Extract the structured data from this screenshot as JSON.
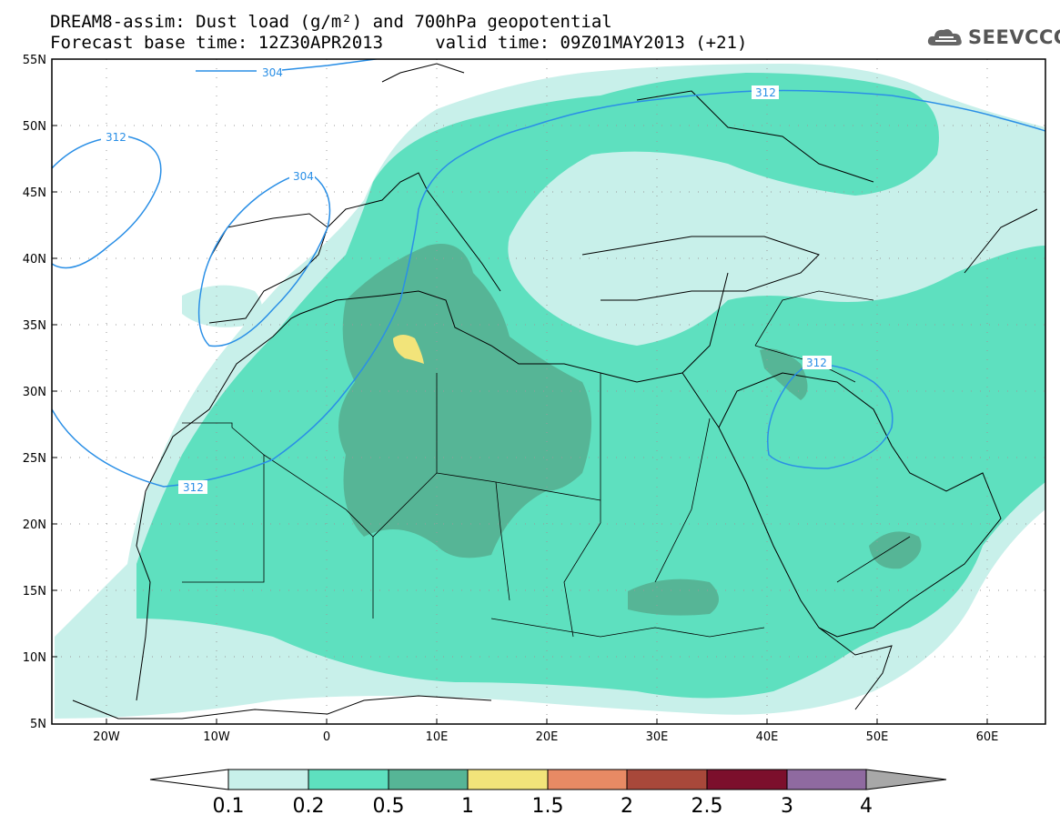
{
  "title_line1": "DREAM8-assim: Dust load (g/m²) and 700hPa geopotential",
  "title_line2": "Forecast base time: 12Z30APR2013     valid time: 09Z01MAY2013 (+21)",
  "logo_text": "SEEVCCC",
  "icons": {
    "logo": "cloud-logo-icon"
  },
  "map": {
    "lon_range": [
      -25,
      65
    ],
    "lat_range": [
      5,
      55
    ],
    "lat_labels": [
      "55N",
      "50N",
      "45N",
      "40N",
      "35N",
      "30N",
      "25N",
      "20N",
      "15N",
      "10N",
      "5N"
    ],
    "lon_labels": [
      "20W",
      "10W",
      "0",
      "10E",
      "20E",
      "30E",
      "40E",
      "50E",
      "60E"
    ],
    "grid": "dotted"
  },
  "contours": {
    "variable": "700hPa geopotential",
    "labels": [
      "304",
      "312",
      "304",
      "312",
      "312",
      "312"
    ]
  },
  "colorbar": {
    "ticks": [
      "0.1",
      "0.2",
      "0.5",
      "1",
      "1.5",
      "2",
      "2.5",
      "3",
      "4"
    ],
    "colors": [
      "#ffffff",
      "#c8f0ea",
      "#5ee0bf",
      "#56b596",
      "#f2e47a",
      "#e88a64",
      "#a8483a",
      "#7c0f2c",
      "#8f6aa0",
      "#a8a8a8"
    ]
  },
  "colors": {
    "dust_01": "#c8f0ea",
    "dust_02": "#5ee0bf",
    "dust_05": "#56b596",
    "dust_10": "#f2e47a",
    "contour": "#2a8fe6"
  }
}
